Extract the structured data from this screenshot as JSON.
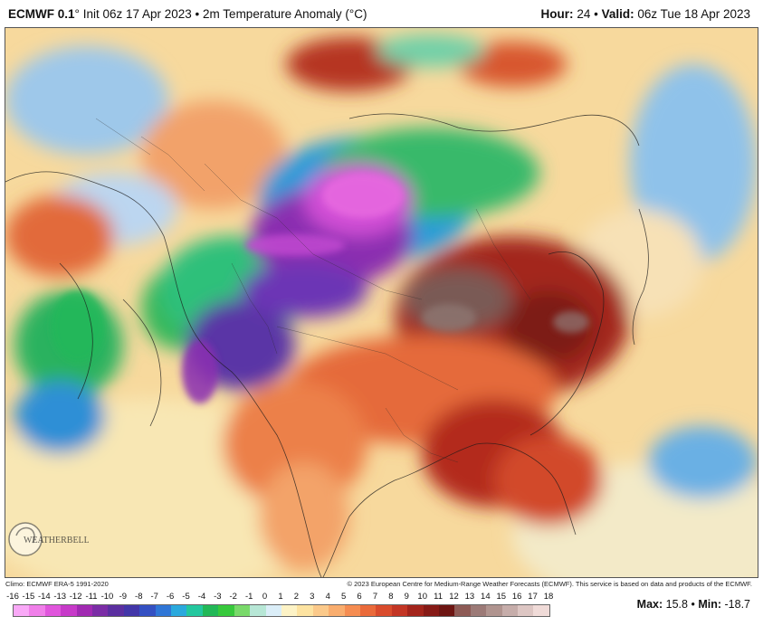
{
  "header": {
    "model": "ECMWF 0.1",
    "degree": "°",
    "init": "Init 06z 17 Apr 2023",
    "separator": "•",
    "variable": "2m Temperature Anomaly (°C)",
    "hour_label": "Hour:",
    "hour_value": "24",
    "valid_label": "Valid:",
    "valid_value": "06z Tue 18 Apr 2023"
  },
  "footer": {
    "climo": "Climo: ECMWF ERA-5 1991-2020",
    "copyright": "© 2023 European Centre for Medium-Range Weather Forecasts (ECMWF). This service is based on data and products of the ECMWF.",
    "max_label": "Max:",
    "max_value": "15.8",
    "min_label": "Min:",
    "min_value": "-18.7"
  },
  "logo": {
    "text": "WEATHERBELL",
    "icon": "weatherbell-logo-icon"
  },
  "legend": {
    "ticks": [
      "-16",
      "-15",
      "-14",
      "-13",
      "-12",
      "-11",
      "-10",
      "-9",
      "-8",
      "-7",
      "-6",
      "-5",
      "-4",
      "-3",
      "-2",
      "-1",
      "0",
      "1",
      "2",
      "3",
      "4",
      "5",
      "6",
      "7",
      "8",
      "9",
      "10",
      "11",
      "12",
      "13",
      "14",
      "15",
      "16",
      "17",
      "18"
    ],
    "colors": [
      "#f9a9f7",
      "#f07fe9",
      "#e055dc",
      "#c73ac9",
      "#a12ab2",
      "#7b2da6",
      "#5b2fa0",
      "#4236a8",
      "#3450c2",
      "#2f76d6",
      "#2aa9dd",
      "#23c79e",
      "#22b857",
      "#37c93c",
      "#79d96a",
      "#b7e7d6",
      "#dbeef8",
      "#fdf3c6",
      "#fde3a1",
      "#fbc98a",
      "#f9ad6e",
      "#f58c51",
      "#ea6a3a",
      "#d94b2c",
      "#c33524",
      "#a3241b",
      "#861a16",
      "#6d1512",
      "#8d5a55",
      "#9c7a77",
      "#b0948f",
      "#c6adaa",
      "#ddc6c3",
      "#f0dbd8"
    ]
  },
  "map": {
    "region": "Asia"
  }
}
